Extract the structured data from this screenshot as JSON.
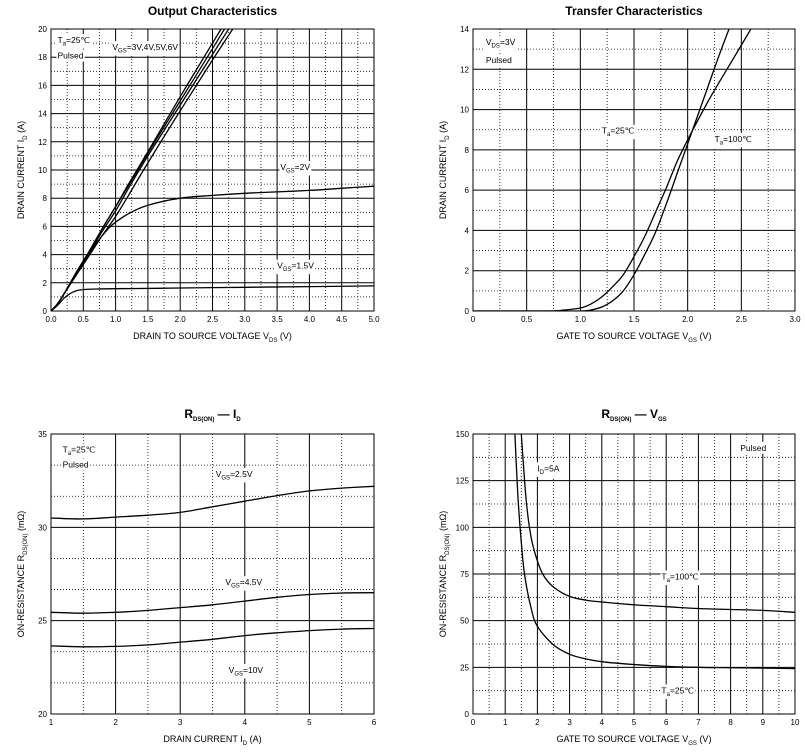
{
  "chart_data": [
    {
      "id": "output",
      "type": "line",
      "title": "Output Characteristics",
      "xlabel": "DRAIN TO SOURCE VOLTAGE",
      "xlabel_sym": "V",
      "xlabel_sub": "DS",
      "xlabel_unit": "(V)",
      "ylabel": "DRAIN CURRENT",
      "ylabel_sym": "I",
      "ylabel_sub": "D",
      "ylabel_unit": "(A)",
      "xlim": [
        0,
        5
      ],
      "ylim": [
        0,
        20
      ],
      "xticks": [
        "0.0",
        "0.5",
        "1.0",
        "1.5",
        "2.0",
        "2.5",
        "3.0",
        "3.5",
        "4.0",
        "4.5",
        "5.0"
      ],
      "yticks": [
        "0",
        "2",
        "4",
        "6",
        "8",
        "10",
        "12",
        "14",
        "16",
        "18",
        "20"
      ],
      "annotations": [
        {
          "text": "T",
          "sub": "a",
          "rest": "=25℃",
          "x": 0.1,
          "y": 19.0
        },
        {
          "text": "Pulsed",
          "sub": "",
          "rest": "",
          "x": 0.1,
          "y": 17.9
        },
        {
          "text": "V",
          "sub": "GS",
          "rest": "=3V,4V,5V,6V",
          "x": 0.95,
          "y": 18.5
        },
        {
          "text": "V",
          "sub": "GS",
          "rest": "=2V",
          "x": 3.55,
          "y": 10.0
        },
        {
          "text": "V",
          "sub": "GS",
          "rest": "=1.5V",
          "x": 3.5,
          "y": 3.0
        }
      ],
      "series": [
        {
          "x": [
            0,
            0.1,
            0.2,
            0.4,
            0.6,
            0.8,
            1.0,
            1.2,
            1.5,
            2.0,
            2.5,
            2.9
          ],
          "y": [
            0,
            0.5,
            1.2,
            2.8,
            4.3,
            5.9,
            7.4,
            9.0,
            11.3,
            15.2,
            19.0,
            22.0
          ]
        },
        {
          "x": [
            0,
            0.1,
            0.2,
            0.4,
            0.6,
            0.8,
            1.0,
            1.2,
            1.5,
            2.0,
            2.5,
            2.95
          ],
          "y": [
            0,
            0.5,
            1.2,
            2.8,
            4.3,
            5.9,
            7.4,
            8.9,
            11.2,
            14.9,
            18.6,
            22.0
          ]
        },
        {
          "x": [
            0,
            0.1,
            0.2,
            0.4,
            0.6,
            0.8,
            1.0,
            1.2,
            1.5,
            2.0,
            2.5,
            3.0
          ],
          "y": [
            0,
            0.5,
            1.2,
            2.7,
            4.2,
            5.7,
            7.1,
            8.7,
            11.0,
            14.6,
            18.2,
            21.8
          ]
        },
        {
          "x": [
            0,
            0.1,
            0.2,
            0.4,
            0.6,
            0.8,
            1.0,
            1.2,
            1.5,
            2.0,
            2.5,
            3.0
          ],
          "y": [
            0,
            0.5,
            1.2,
            2.6,
            4.0,
            5.4,
            6.7,
            8.2,
            10.5,
            14.2,
            17.8,
            21.3
          ]
        },
        {
          "x": [
            0,
            0.1,
            0.2,
            0.3,
            0.5,
            0.7,
            0.9,
            1.0,
            1.2,
            1.5,
            2.0,
            2.5,
            3.0,
            3.5,
            4.0,
            4.5,
            5.0
          ],
          "y": [
            0,
            0.5,
            1.2,
            2.0,
            3.4,
            4.8,
            5.9,
            6.3,
            6.9,
            7.5,
            8.0,
            8.2,
            8.35,
            8.45,
            8.55,
            8.7,
            8.85
          ]
        },
        {
          "x": [
            0,
            0.1,
            0.2,
            0.3,
            0.4,
            0.5,
            0.7,
            1.0,
            2.0,
            3.0,
            4.0,
            5.0
          ],
          "y": [
            0,
            0.4,
            0.9,
            1.25,
            1.45,
            1.52,
            1.56,
            1.58,
            1.63,
            1.68,
            1.73,
            1.78
          ]
        }
      ]
    },
    {
      "id": "transfer",
      "type": "line",
      "title": "Transfer Characteristics",
      "xlabel": "GATE TO SOURCE VOLTAGE",
      "xlabel_sym": "V",
      "xlabel_sub": "GS",
      "xlabel_unit": "(V)",
      "ylabel": "DRAIN CURRENT",
      "ylabel_sym": "I",
      "ylabel_sub": "D",
      "ylabel_unit": "(A)",
      "xlim": [
        0,
        3
      ],
      "ylim": [
        0,
        14
      ],
      "xticks": [
        "0",
        "0.5",
        "1.0",
        "1.5",
        "2.0",
        "2.5",
        "3.0"
      ],
      "yticks": [
        "0",
        "2",
        "4",
        "6",
        "8",
        "10",
        "12",
        "14"
      ],
      "annotations": [
        {
          "text": "V",
          "sub": "DS",
          "rest": "=3V",
          "x": 0.12,
          "y": 13.2
        },
        {
          "text": "Pulsed",
          "sub": "",
          "rest": "",
          "x": 0.12,
          "y": 12.3
        },
        {
          "text": "T",
          "sub": "a",
          "rest": "=25℃",
          "x": 1.2,
          "y": 8.8
        },
        {
          "text": "T",
          "sub": "a",
          "rest": "=100℃",
          "x": 2.25,
          "y": 8.4
        }
      ],
      "series": [
        {
          "name": "T=25",
          "x": [
            0,
            0.8,
            1.0,
            1.1,
            1.2,
            1.3,
            1.4,
            1.5,
            1.6,
            1.7,
            1.8,
            1.9,
            2.0,
            2.1,
            2.2,
            2.3,
            2.4
          ],
          "y": [
            0,
            0,
            0,
            0.05,
            0.2,
            0.5,
            1.0,
            1.8,
            2.8,
            3.9,
            5.3,
            6.8,
            8.3,
            9.8,
            11.3,
            12.8,
            14.2
          ]
        },
        {
          "name": "T=100",
          "x": [
            0,
            0.7,
            0.85,
            1.0,
            1.1,
            1.2,
            1.3,
            1.4,
            1.5,
            1.6,
            1.7,
            1.8,
            1.9,
            2.0,
            2.2,
            2.4,
            2.6
          ],
          "y": [
            0,
            0,
            0.05,
            0.15,
            0.35,
            0.7,
            1.2,
            1.8,
            2.7,
            3.7,
            4.9,
            6.1,
            7.4,
            8.5,
            10.5,
            12.3,
            14.1
          ]
        }
      ]
    },
    {
      "id": "rds_id",
      "type": "line",
      "title_sym": "R",
      "title_sub": "DS(ON)",
      "title_mid": "—",
      "title_sym2": "I",
      "title_sub2": "D",
      "xlabel": "DRAIN CURRENT",
      "xlabel_sym": "I",
      "xlabel_sub": "D",
      "xlabel_unit": "(A)",
      "ylabel": "ON-RESISTANCE",
      "ylabel_sym": "R",
      "ylabel_sub": "DS(ON)",
      "ylabel_unit": "(mΩ)",
      "xlim": [
        1,
        6
      ],
      "ylim": [
        20,
        35
      ],
      "xticks": [
        "1",
        "2",
        "3",
        "4",
        "5",
        "6"
      ],
      "yticks": [
        "20",
        "25",
        "30",
        "35"
      ],
      "annotations": [
        {
          "text": "T",
          "sub": "a",
          "rest": "=25℃",
          "x": 1.18,
          "y": 34.0
        },
        {
          "text": "Pulsed",
          "sub": "",
          "rest": "",
          "x": 1.18,
          "y": 33.2
        },
        {
          "text": "V",
          "sub": "GS",
          "rest": "=2.5V",
          "x": 3.55,
          "y": 32.7
        },
        {
          "text": "V",
          "sub": "GS",
          "rest": "=4.5V",
          "x": 3.7,
          "y": 26.9
        },
        {
          "text": "V",
          "sub": "GS",
          "rest": "=10V",
          "x": 3.75,
          "y": 22.2
        }
      ],
      "series": [
        {
          "x": [
            1,
            1.5,
            2,
            2.5,
            3,
            3.5,
            4,
            4.5,
            5,
            5.5,
            6
          ],
          "y": [
            30.5,
            30.45,
            30.55,
            30.65,
            30.8,
            31.1,
            31.4,
            31.7,
            31.95,
            32.1,
            32.2
          ]
        },
        {
          "x": [
            1,
            1.5,
            2,
            2.5,
            3,
            3.5,
            4,
            4.5,
            5,
            5.5,
            6
          ],
          "y": [
            25.45,
            25.4,
            25.45,
            25.55,
            25.7,
            25.85,
            26.05,
            26.25,
            26.4,
            26.48,
            26.5
          ]
        },
        {
          "x": [
            1,
            1.5,
            2,
            2.5,
            3,
            3.5,
            4,
            4.5,
            5,
            5.5,
            6
          ],
          "y": [
            23.65,
            23.6,
            23.62,
            23.7,
            23.85,
            24.0,
            24.2,
            24.35,
            24.47,
            24.55,
            24.58
          ]
        }
      ]
    },
    {
      "id": "rds_vgs",
      "type": "line",
      "title_sym": "R",
      "title_sub": "DS(ON)",
      "title_mid": "—",
      "title_sym2": "V",
      "title_sub2": "GS",
      "xlabel": "GATE TO SOURCE VOLTAGE",
      "xlabel_sym": "V",
      "xlabel_sub": "GS",
      "xlabel_unit": "(V)",
      "ylabel": "ON-RESISTANCE",
      "ylabel_sym": "R",
      "ylabel_sub": "DS(ON)",
      "ylabel_unit": "(mΩ)",
      "xlim": [
        0,
        10
      ],
      "ylim": [
        0,
        150
      ],
      "xticks": [
        "0",
        "1",
        "2",
        "3",
        "4",
        "5",
        "6",
        "7",
        "8",
        "9",
        "10"
      ],
      "yticks": [
        "0",
        "25",
        "50",
        "75",
        "100",
        "125",
        "150"
      ],
      "annotations": [
        {
          "text": "Pulsed",
          "sub": "",
          "rest": "",
          "x": 8.3,
          "y": 141
        },
        {
          "text": "I",
          "sub": "D",
          "rest": "=5A",
          "x": 2.0,
          "y": 130
        },
        {
          "text": "T",
          "sub": "a",
          "rest": "=100℃",
          "x": 5.85,
          "y": 72
        },
        {
          "text": "T",
          "sub": "a",
          "rest": "=25℃",
          "x": 5.85,
          "y": 11
        }
      ],
      "series": [
        {
          "name": "T=100",
          "x": [
            1.5,
            1.65,
            1.8,
            2.0,
            2.2,
            2.5,
            3.0,
            3.5,
            4,
            5,
            6,
            7,
            8,
            9,
            10
          ],
          "y": [
            150,
            115,
            95,
            82,
            74,
            68,
            63,
            61,
            60,
            58.5,
            57.5,
            56.5,
            56,
            55.5,
            54.5
          ]
        },
        {
          "name": "T=25",
          "x": [
            1.3,
            1.4,
            1.5,
            1.6,
            1.8,
            2.0,
            2.5,
            3.0,
            3.5,
            4,
            5,
            6,
            7,
            8,
            9,
            10
          ],
          "y": [
            150,
            115,
            92,
            75,
            57,
            47,
            37,
            32,
            29.5,
            28,
            26.5,
            25.5,
            25,
            24.8,
            24.6,
            24.3
          ]
        }
      ]
    }
  ]
}
